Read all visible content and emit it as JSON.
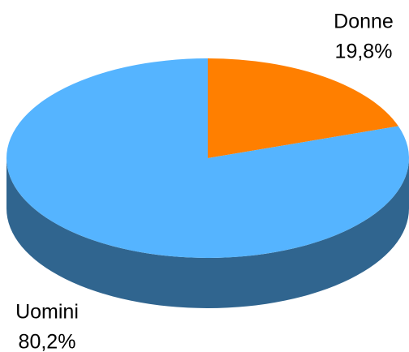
{
  "chart_data": {
    "type": "pie",
    "categories": [
      "Donne",
      "Uomini"
    ],
    "values": [
      19.8,
      80.2
    ],
    "value_labels": [
      "19,8%",
      "80,2%"
    ],
    "colors": [
      "#ff7f00",
      "#55b4ff"
    ]
  }
}
